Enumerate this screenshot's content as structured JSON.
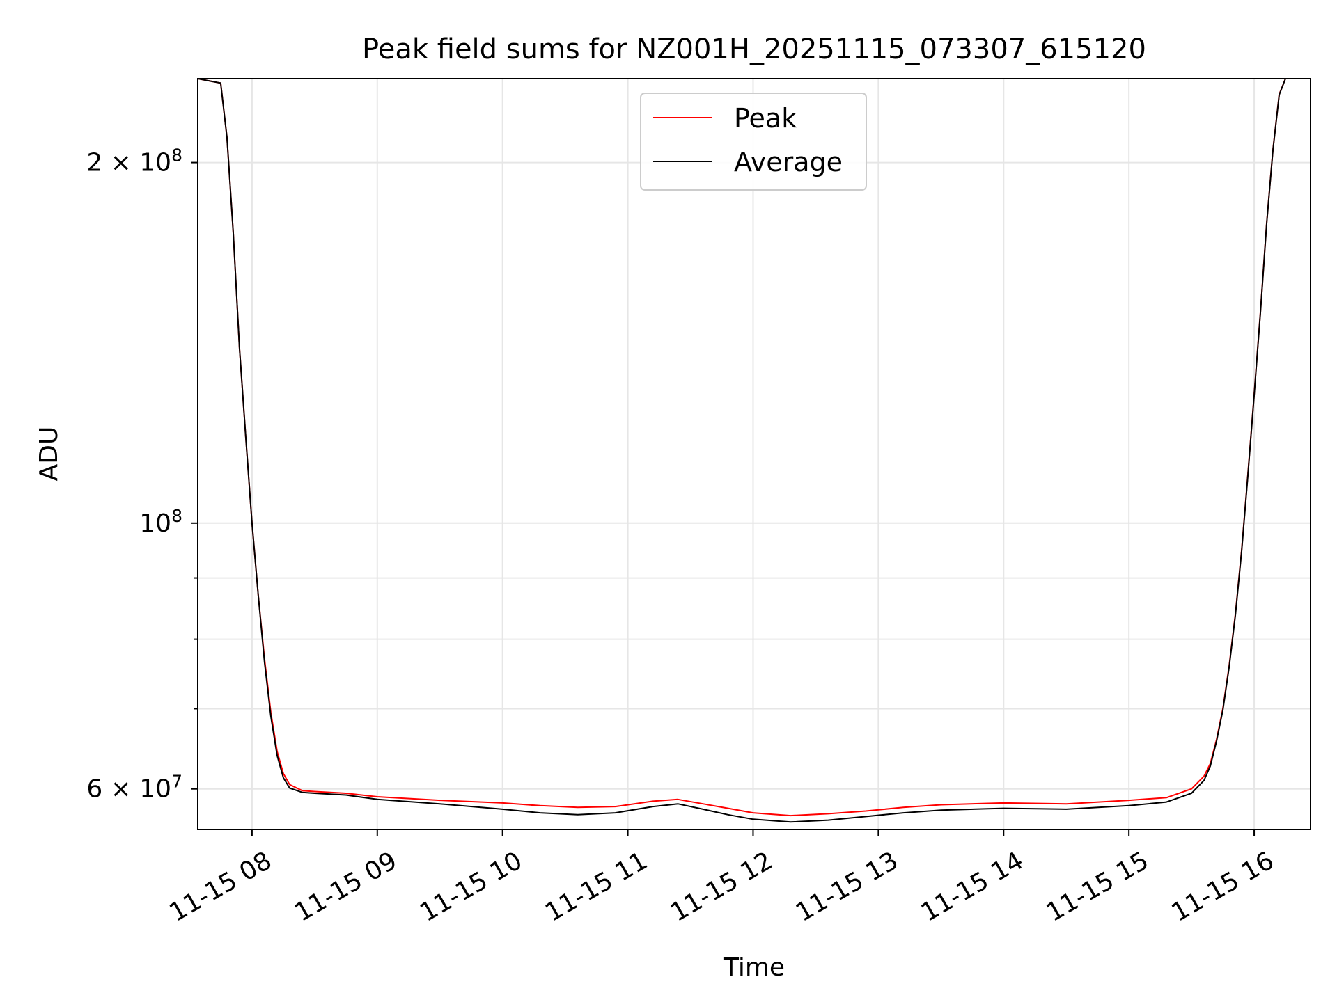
{
  "chart_data": {
    "type": "line",
    "title": "Peak field sums for NZ001H_20251115_073307_615120",
    "xlabel": "Time",
    "ylabel": "ADU",
    "y_scale": "log",
    "xlim": [
      7.567,
      16.45
    ],
    "ylim": [
      55500000,
      235000000
    ],
    "grid": true,
    "legend_position": "top-center",
    "x_ticks": [
      {
        "value": 8,
        "label": "11-15 08"
      },
      {
        "value": 9,
        "label": "11-15 09"
      },
      {
        "value": 10,
        "label": "11-15 10"
      },
      {
        "value": 11,
        "label": "11-15 11"
      },
      {
        "value": 12,
        "label": "11-15 12"
      },
      {
        "value": 13,
        "label": "11-15 13"
      },
      {
        "value": 14,
        "label": "11-15 14"
      },
      {
        "value": 15,
        "label": "11-15 15"
      },
      {
        "value": 16,
        "label": "11-15 16"
      }
    ],
    "y_major_ticks": [
      {
        "value": 60000000,
        "mantissa": "6",
        "exponent": "7"
      },
      {
        "value": 100000000,
        "mantissa": "",
        "exponent": "8"
      },
      {
        "value": 200000000,
        "mantissa": "2",
        "exponent": "8"
      }
    ],
    "y_minor_ticks": [
      70000000,
      80000000,
      90000000
    ],
    "x_unit": "hours since 11-15 00:00",
    "series": [
      {
        "name": "Peak",
        "color": "#ff0000",
        "x": [
          7.567,
          7.75,
          7.8,
          7.85,
          7.9,
          7.95,
          8.0,
          8.05,
          8.1,
          8.15,
          8.2,
          8.25,
          8.3,
          8.4,
          8.5,
          8.75,
          9.0,
          9.5,
          10.0,
          10.3,
          10.6,
          10.9,
          11.2,
          11.4,
          11.6,
          11.8,
          12.0,
          12.3,
          12.6,
          12.9,
          13.2,
          13.5,
          14.0,
          14.5,
          15.0,
          15.3,
          15.5,
          15.6,
          15.65,
          15.7,
          15.75,
          15.8,
          15.85,
          15.9,
          15.95,
          16.0,
          16.05,
          16.1,
          16.15,
          16.2,
          16.25,
          16.45
        ],
        "y": [
          235000000,
          233000000,
          210000000,
          175000000,
          140000000,
          118000000,
          100000000,
          87000000,
          77000000,
          69500000,
          64500000,
          61800000,
          60500000,
          59800000,
          59700000,
          59500000,
          59100000,
          58700000,
          58400000,
          58100000,
          57900000,
          58000000,
          58600000,
          58800000,
          58300000,
          57800000,
          57300000,
          57000000,
          57200000,
          57500000,
          57900000,
          58200000,
          58400000,
          58300000,
          58700000,
          59000000,
          60000000,
          61500000,
          63000000,
          66000000,
          70000000,
          76000000,
          84000000,
          95000000,
          110000000,
          128000000,
          150000000,
          178000000,
          205000000,
          228000000,
          235000000,
          235000000
        ]
      },
      {
        "name": "Average",
        "color": "#000000",
        "x": [
          7.567,
          7.75,
          7.8,
          7.85,
          7.9,
          7.95,
          8.0,
          8.05,
          8.1,
          8.15,
          8.2,
          8.25,
          8.3,
          8.4,
          8.5,
          8.75,
          9.0,
          9.5,
          10.0,
          10.3,
          10.6,
          10.9,
          11.2,
          11.4,
          11.6,
          11.8,
          12.0,
          12.3,
          12.6,
          12.9,
          13.2,
          13.5,
          14.0,
          14.5,
          15.0,
          15.3,
          15.5,
          15.6,
          15.65,
          15.7,
          15.75,
          15.8,
          15.85,
          15.9,
          15.95,
          16.0,
          16.05,
          16.1,
          16.15,
          16.2,
          16.25,
          16.45
        ],
        "y": [
          235000000,
          233000000,
          210000000,
          175000000,
          140000000,
          118000000,
          100000000,
          87000000,
          76500000,
          69000000,
          64000000,
          61300000,
          60100000,
          59600000,
          59500000,
          59300000,
          58800000,
          58300000,
          57700000,
          57300000,
          57100000,
          57300000,
          58000000,
          58300000,
          57700000,
          57100000,
          56600000,
          56300000,
          56500000,
          56900000,
          57300000,
          57600000,
          57800000,
          57700000,
          58100000,
          58500000,
          59500000,
          61000000,
          62700000,
          65800000,
          69800000,
          75800000,
          83800000,
          94800000,
          109800000,
          127800000,
          149800000,
          177800000,
          204800000,
          227800000,
          235000000,
          235000000
        ]
      }
    ]
  }
}
